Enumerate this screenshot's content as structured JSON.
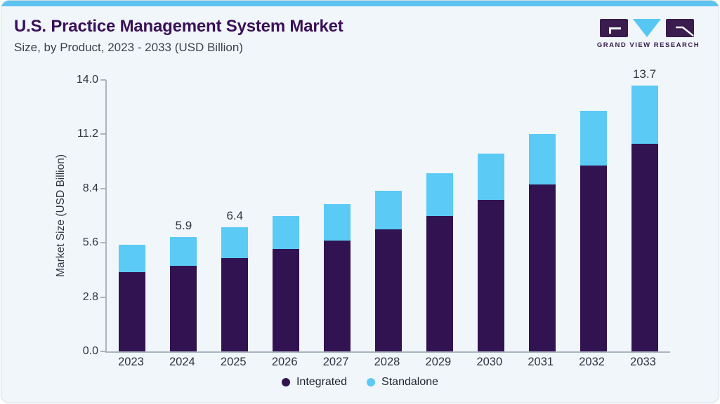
{
  "page": {
    "title": "U.S. Practice Management System Market",
    "subtitle": "Size, by Product, 2023 - 2033 (USD Billion)"
  },
  "logo": {
    "brand": "GRAND VIEW RESEARCH",
    "purple": "#3A1C4E",
    "blue": "#56C7F2"
  },
  "chart_data": {
    "type": "bar",
    "stacked": true,
    "title": "U.S. Practice Management System Market",
    "subtitle": "Size, by Product, 2023 - 2033 (USD Billion)",
    "categories": [
      "2023",
      "2024",
      "2025",
      "2026",
      "2027",
      "2028",
      "2029",
      "2030",
      "2031",
      "2032",
      "2033"
    ],
    "series": [
      {
        "name": "Integrated",
        "color": "#321351",
        "values": [
          4.1,
          4.4,
          4.8,
          5.3,
          5.7,
          6.3,
          7.0,
          7.8,
          8.6,
          9.6,
          10.7
        ]
      },
      {
        "name": "Standalone",
        "color": "#5BCAF5",
        "values": [
          1.4,
          1.5,
          1.6,
          1.7,
          1.9,
          2.0,
          2.2,
          2.4,
          2.6,
          2.8,
          3.0
        ]
      }
    ],
    "totals": [
      5.5,
      5.9,
      6.4,
      7.0,
      7.6,
      8.3,
      9.2,
      10.2,
      11.2,
      12.4,
      13.7
    ],
    "visible_total_labels": {
      "2024": "5.9",
      "2025": "6.4",
      "2033": "13.7"
    },
    "xlabel": "",
    "ylabel": "Market Size (USD Billion)",
    "yticks": [
      "0.0",
      "2.8",
      "5.6",
      "8.4",
      "11.2",
      "14.0"
    ],
    "ytick_values": [
      0,
      2.8,
      5.6,
      8.4,
      11.2,
      14
    ],
    "ylim": [
      0,
      14
    ],
    "grid": false,
    "legend_position": "bottom"
  }
}
